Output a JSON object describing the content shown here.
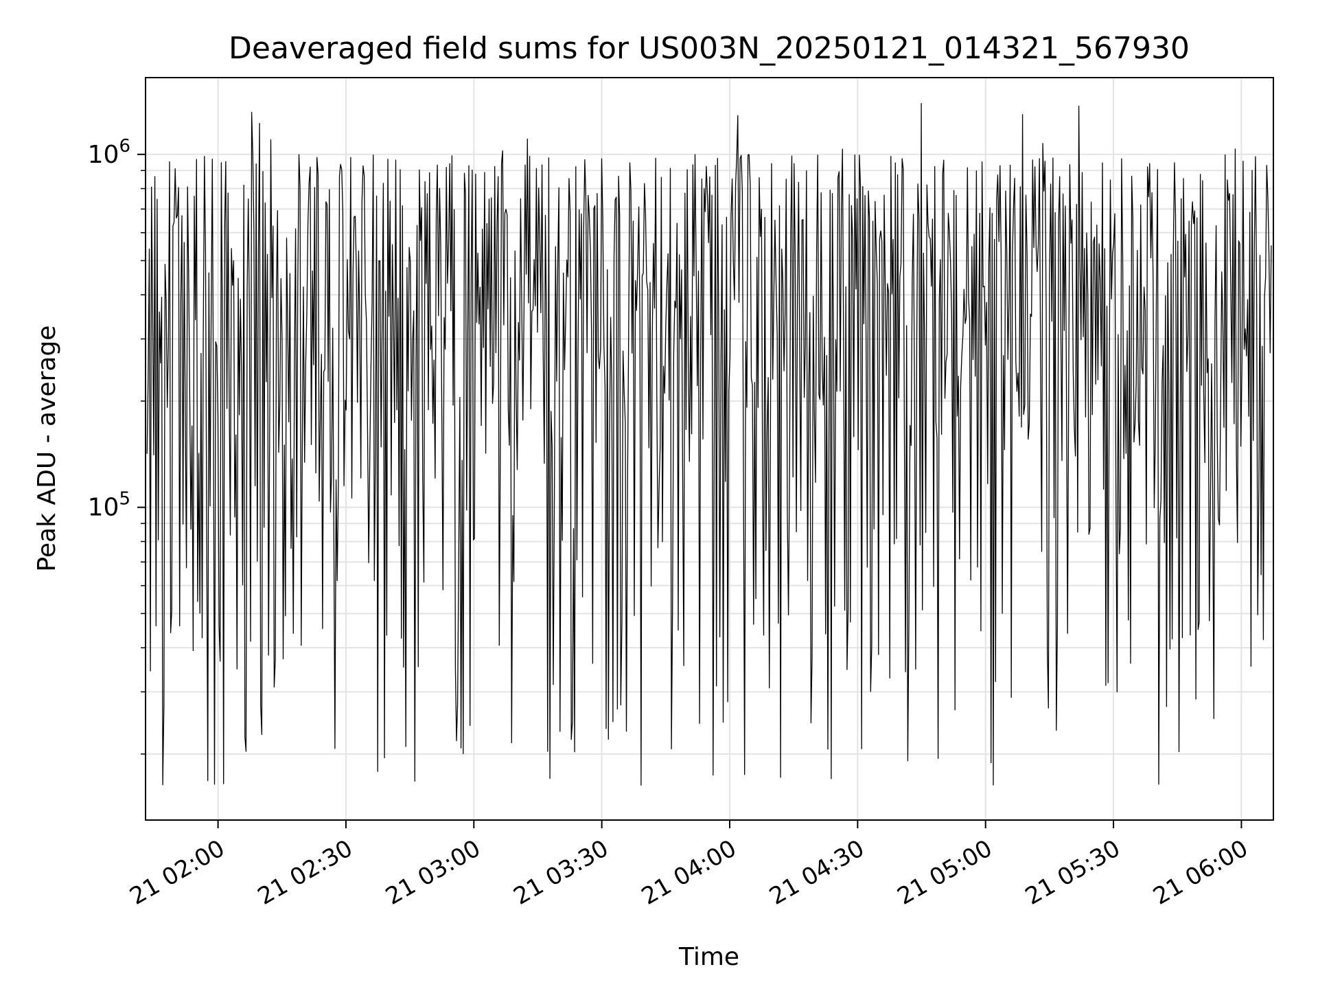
{
  "chart_data": {
    "type": "line",
    "title": "Deaveraged field sums for US003N_20250121_014321_567930",
    "xlabel": "Time",
    "ylabel": "Peak ADU - average",
    "x_start": "2025-01-21 01:43:21",
    "x_end": "2025-01-21 06:07:00",
    "xlim": [
      "2025-01-21 01:43:00",
      "2025-01-21 06:07:30"
    ],
    "ylim": [
      13000,
      1650000
    ],
    "yscale": "log",
    "grid": true,
    "line_color": "#000000",
    "x_ticks": [
      {
        "time": "2025-01-21 02:00",
        "label": "21 02:00"
      },
      {
        "time": "2025-01-21 02:30",
        "label": "21 02:30"
      },
      {
        "time": "2025-01-21 03:00",
        "label": "21 03:00"
      },
      {
        "time": "2025-01-21 03:30",
        "label": "21 03:30"
      },
      {
        "time": "2025-01-21 04:00",
        "label": "21 04:00"
      },
      {
        "time": "2025-01-21 04:30",
        "label": "21 04:30"
      },
      {
        "time": "2025-01-21 05:00",
        "label": "21 05:00"
      },
      {
        "time": "2025-01-21 05:30",
        "label": "21 05:30"
      },
      {
        "time": "2025-01-21 06:00",
        "label": "21 06:00"
      }
    ],
    "y_major_ticks": [
      {
        "value": 100000,
        "base": "10",
        "exp": "5"
      },
      {
        "value": 1000000,
        "base": "10",
        "exp": "6"
      }
    ],
    "y_minor_ticks": [
      20000,
      30000,
      40000,
      50000,
      60000,
      70000,
      80000,
      90000,
      200000,
      300000,
      400000,
      500000,
      600000,
      700000,
      800000,
      900000
    ],
    "series_summary": {
      "points": 1000,
      "typical_min": 20000,
      "typical_max": 1000000,
      "absolute_min": 16000,
      "absolute_max": 1400000
    }
  }
}
